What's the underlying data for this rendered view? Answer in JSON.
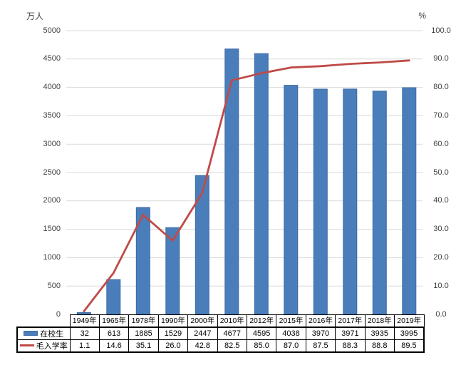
{
  "chart": {
    "colors": {
      "bar_fill": "#4a7ebb",
      "bar_border": "#3d6ba5",
      "line": "#be4b48",
      "gridline": "#d9d9d9",
      "axis_text": "#3f3f3f",
      "table_border": "#000000"
    }
  },
  "chart_data": {
    "type": "bar",
    "subtype": "bar+line combo with data table",
    "categories": [
      "1949年",
      "1965年",
      "1978年",
      "1990年",
      "2000年",
      "2010年",
      "2012年",
      "2015年",
      "2016年",
      "2017年",
      "2018年",
      "2019年"
    ],
    "series": [
      {
        "name": "在校生",
        "type": "bar",
        "axis": "left",
        "values": [
          32,
          613,
          1885,
          1529,
          2447,
          4677,
          4595,
          4038,
          3970,
          3971,
          3935,
          3995
        ]
      },
      {
        "name": "毛入学率",
        "type": "line",
        "axis": "right",
        "values": [
          1.1,
          14.6,
          35.1,
          26.0,
          42.8,
          82.5,
          85.0,
          87.0,
          87.5,
          88.3,
          88.8,
          89.5
        ]
      }
    ],
    "left_axis": {
      "label": "万人",
      "min": 0,
      "max": 5000,
      "step": 500,
      "decimals": 0
    },
    "right_axis": {
      "label": "%",
      "min": 0,
      "max": 100,
      "step": 10,
      "decimals": 1
    },
    "title": "",
    "grid": "horizontal",
    "legend_position": "data-table-left"
  }
}
